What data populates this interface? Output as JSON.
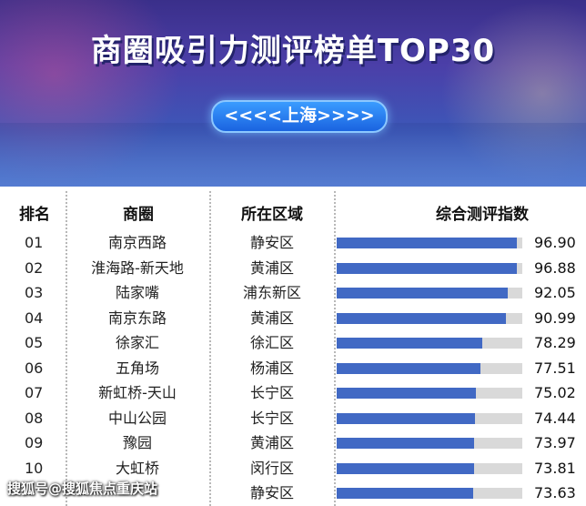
{
  "banner": {
    "title": "商圈吸引力测评榜单TOP30",
    "city": "<<<<上海>>>>"
  },
  "headers": {
    "rank": "排名",
    "area": "商圈",
    "district": "所在区域",
    "score": "综合测评指数"
  },
  "watermark": "搜狐号@搜狐焦点重庆站",
  "chart_data": {
    "type": "bar",
    "orientation": "horizontal",
    "xlim": [
      0,
      100
    ],
    "ranks": [
      "01",
      "02",
      "03",
      "04",
      "05",
      "06",
      "07",
      "08",
      "09",
      "10",
      ""
    ],
    "categories": [
      "南京西路",
      "淮海路-新天地",
      "陆家嘴",
      "南京东路",
      "徐家汇",
      "五角场",
      "新虹桥-天山",
      "中山公园",
      "豫园",
      "大虹桥",
      ""
    ],
    "districts": [
      "静安区",
      "黄浦区",
      "浦东新区",
      "黄浦区",
      "徐汇区",
      "杨浦区",
      "长宁区",
      "长宁区",
      "黄浦区",
      "闵行区",
      "静安区"
    ],
    "values": [
      96.9,
      96.88,
      92.05,
      90.99,
      78.29,
      77.51,
      75.02,
      74.44,
      73.97,
      73.81,
      73.63
    ],
    "value_labels": [
      "96.90",
      "96.88",
      "92.05",
      "90.99",
      "78.29",
      "77.51",
      "75.02",
      "74.44",
      "73.97",
      "73.81",
      "73.63"
    ],
    "bar_color": "#4169c4",
    "track_color": "#d9d9d9"
  }
}
